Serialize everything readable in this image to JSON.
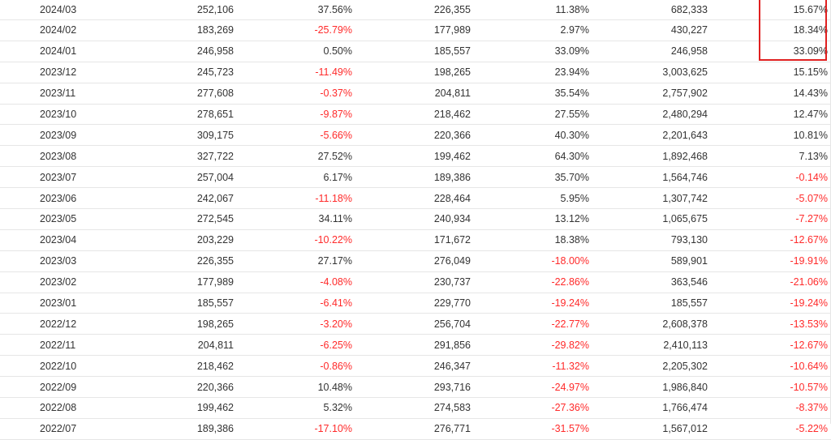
{
  "table": {
    "rows": [
      {
        "month": "2024/03",
        "v1": "252,106",
        "p1": "37.56%",
        "v2": "226,355",
        "p2": "11.38%",
        "v3": "682,333",
        "p3": "15.67%"
      },
      {
        "month": "2024/02",
        "v1": "183,269",
        "p1": "-25.79%",
        "v2": "177,989",
        "p2": "2.97%",
        "v3": "430,227",
        "p3": "18.34%"
      },
      {
        "month": "2024/01",
        "v1": "246,958",
        "p1": "0.50%",
        "v2": "185,557",
        "p2": "33.09%",
        "v3": "246,958",
        "p3": "33.09%"
      },
      {
        "month": "2023/12",
        "v1": "245,723",
        "p1": "-11.49%",
        "v2": "198,265",
        "p2": "23.94%",
        "v3": "3,003,625",
        "p3": "15.15%"
      },
      {
        "month": "2023/11",
        "v1": "277,608",
        "p1": "-0.37%",
        "v2": "204,811",
        "p2": "35.54%",
        "v3": "2,757,902",
        "p3": "14.43%"
      },
      {
        "month": "2023/10",
        "v1": "278,651",
        "p1": "-9.87%",
        "v2": "218,462",
        "p2": "27.55%",
        "v3": "2,480,294",
        "p3": "12.47%"
      },
      {
        "month": "2023/09",
        "v1": "309,175",
        "p1": "-5.66%",
        "v2": "220,366",
        "p2": "40.30%",
        "v3": "2,201,643",
        "p3": "10.81%"
      },
      {
        "month": "2023/08",
        "v1": "327,722",
        "p1": "27.52%",
        "v2": "199,462",
        "p2": "64.30%",
        "v3": "1,892,468",
        "p3": "7.13%"
      },
      {
        "month": "2023/07",
        "v1": "257,004",
        "p1": "6.17%",
        "v2": "189,386",
        "p2": "35.70%",
        "v3": "1,564,746",
        "p3": "-0.14%"
      },
      {
        "month": "2023/06",
        "v1": "242,067",
        "p1": "-11.18%",
        "v2": "228,464",
        "p2": "5.95%",
        "v3": "1,307,742",
        "p3": "-5.07%"
      },
      {
        "month": "2023/05",
        "v1": "272,545",
        "p1": "34.11%",
        "v2": "240,934",
        "p2": "13.12%",
        "v3": "1,065,675",
        "p3": "-7.27%"
      },
      {
        "month": "2023/04",
        "v1": "203,229",
        "p1": "-10.22%",
        "v2": "171,672",
        "p2": "18.38%",
        "v3": "793,130",
        "p3": "-12.67%"
      },
      {
        "month": "2023/03",
        "v1": "226,355",
        "p1": "27.17%",
        "v2": "276,049",
        "p2": "-18.00%",
        "v3": "589,901",
        "p3": "-19.91%"
      },
      {
        "month": "2023/02",
        "v1": "177,989",
        "p1": "-4.08%",
        "v2": "230,737",
        "p2": "-22.86%",
        "v3": "363,546",
        "p3": "-21.06%"
      },
      {
        "month": "2023/01",
        "v1": "185,557",
        "p1": "-6.41%",
        "v2": "229,770",
        "p2": "-19.24%",
        "v3": "185,557",
        "p3": "-19.24%"
      },
      {
        "month": "2022/12",
        "v1": "198,265",
        "p1": "-3.20%",
        "v2": "256,704",
        "p2": "-22.77%",
        "v3": "2,608,378",
        "p3": "-13.53%"
      },
      {
        "month": "2022/11",
        "v1": "204,811",
        "p1": "-6.25%",
        "v2": "291,856",
        "p2": "-29.82%",
        "v3": "2,410,113",
        "p3": "-12.67%"
      },
      {
        "month": "2022/10",
        "v1": "218,462",
        "p1": "-0.86%",
        "v2": "246,347",
        "p2": "-11.32%",
        "v3": "2,205,302",
        "p3": "-10.64%"
      },
      {
        "month": "2022/09",
        "v1": "220,366",
        "p1": "10.48%",
        "v2": "293,716",
        "p2": "-24.97%",
        "v3": "1,986,840",
        "p3": "-10.57%"
      },
      {
        "month": "2022/08",
        "v1": "199,462",
        "p1": "5.32%",
        "v2": "274,583",
        "p2": "-27.36%",
        "v3": "1,766,474",
        "p3": "-8.37%"
      },
      {
        "month": "2022/07",
        "v1": "189,386",
        "p1": "-17.10%",
        "v2": "276,771",
        "p2": "-31.57%",
        "v3": "1,567,012",
        "p3": "-5.22%"
      }
    ]
  },
  "colors": {
    "negative_text": "#ff2a2a",
    "default_text": "#333333",
    "row_divider": "#e6e6e6",
    "highlight_box": "#e02020"
  }
}
